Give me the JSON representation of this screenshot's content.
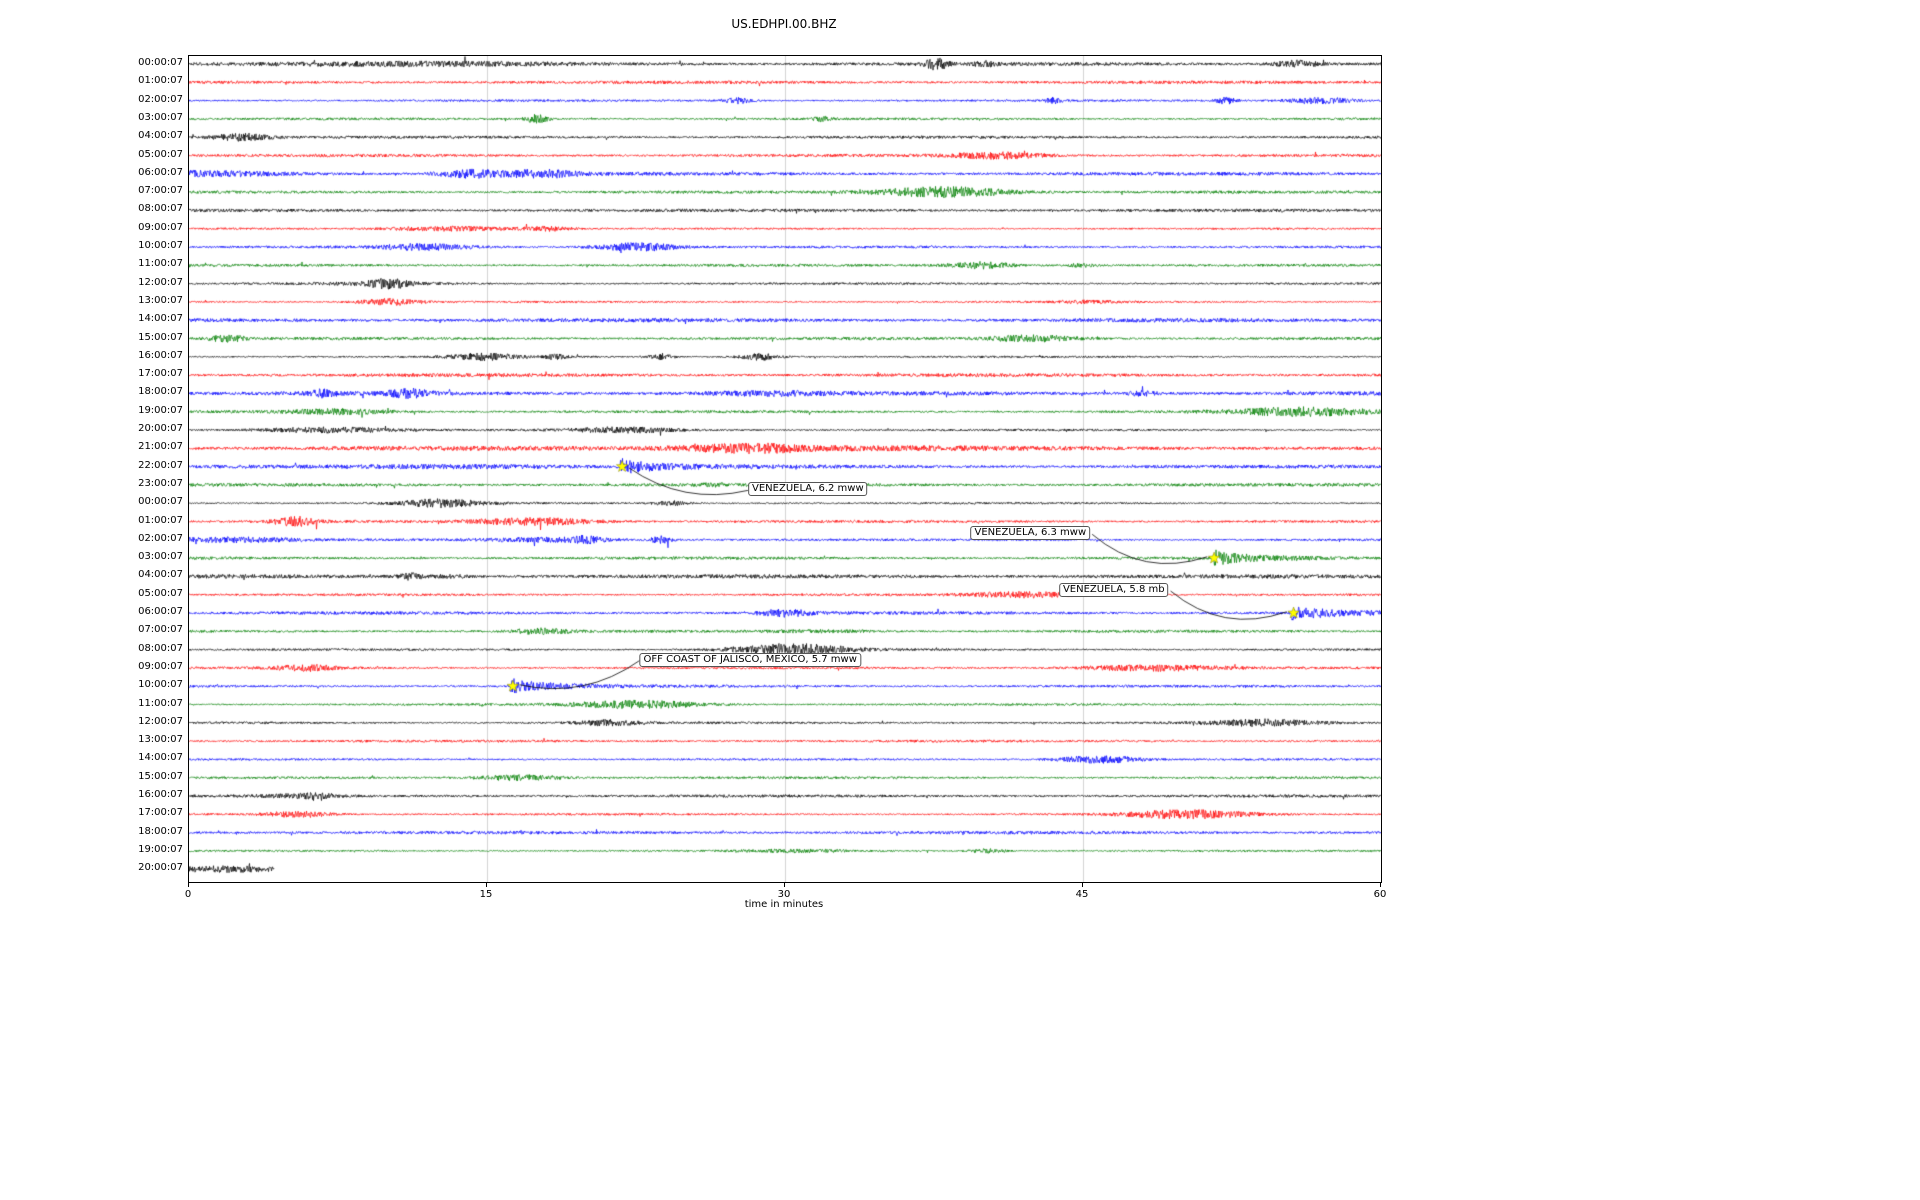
{
  "title": "US.EDHPI.00.BHZ",
  "chart_data": {
    "type": "line",
    "subtype": "helicorder-dayplot",
    "station": "US.EDHPI.00.BHZ",
    "xlabel": "time in minutes",
    "x_range_minutes": [
      0,
      60
    ],
    "x_ticks": [
      0,
      15,
      30,
      45,
      60
    ],
    "grid": "vertical-light-gray",
    "trace_color_cycle": [
      "#000000",
      "#ff0000",
      "#0000ff",
      "#008000"
    ],
    "event_marker_color": "#ffff00",
    "last_row_duration_minutes": 4.3,
    "rows": [
      {
        "label": "00:00:07",
        "color": "#000000"
      },
      {
        "label": "01:00:07",
        "color": "#ff0000"
      },
      {
        "label": "02:00:07",
        "color": "#0000ff"
      },
      {
        "label": "03:00:07",
        "color": "#008000"
      },
      {
        "label": "04:00:07",
        "color": "#000000"
      },
      {
        "label": "05:00:07",
        "color": "#ff0000"
      },
      {
        "label": "06:00:07",
        "color": "#0000ff"
      },
      {
        "label": "07:00:07",
        "color": "#008000"
      },
      {
        "label": "08:00:07",
        "color": "#000000"
      },
      {
        "label": "09:00:07",
        "color": "#ff0000"
      },
      {
        "label": "10:00:07",
        "color": "#0000ff"
      },
      {
        "label": "11:00:07",
        "color": "#008000"
      },
      {
        "label": "12:00:07",
        "color": "#000000"
      },
      {
        "label": "13:00:07",
        "color": "#ff0000"
      },
      {
        "label": "14:00:07",
        "color": "#0000ff"
      },
      {
        "label": "15:00:07",
        "color": "#008000"
      },
      {
        "label": "16:00:07",
        "color": "#000000"
      },
      {
        "label": "17:00:07",
        "color": "#ff0000"
      },
      {
        "label": "18:00:07",
        "color": "#0000ff"
      },
      {
        "label": "19:00:07",
        "color": "#008000"
      },
      {
        "label": "20:00:07",
        "color": "#000000"
      },
      {
        "label": "21:00:07",
        "color": "#ff0000"
      },
      {
        "label": "22:00:07",
        "color": "#0000ff"
      },
      {
        "label": "23:00:07",
        "color": "#008000"
      },
      {
        "label": "00:00:07",
        "color": "#000000"
      },
      {
        "label": "01:00:07",
        "color": "#ff0000"
      },
      {
        "label": "02:00:07",
        "color": "#0000ff"
      },
      {
        "label": "03:00:07",
        "color": "#008000"
      },
      {
        "label": "04:00:07",
        "color": "#000000"
      },
      {
        "label": "05:00:07",
        "color": "#ff0000"
      },
      {
        "label": "06:00:07",
        "color": "#0000ff"
      },
      {
        "label": "07:00:07",
        "color": "#008000"
      },
      {
        "label": "08:00:07",
        "color": "#000000"
      },
      {
        "label": "09:00:07",
        "color": "#ff0000"
      },
      {
        "label": "10:00:07",
        "color": "#0000ff"
      },
      {
        "label": "11:00:07",
        "color": "#008000"
      },
      {
        "label": "12:00:07",
        "color": "#000000"
      },
      {
        "label": "13:00:07",
        "color": "#ff0000"
      },
      {
        "label": "14:00:07",
        "color": "#0000ff"
      },
      {
        "label": "15:00:07",
        "color": "#008000"
      },
      {
        "label": "16:00:07",
        "color": "#000000"
      },
      {
        "label": "17:00:07",
        "color": "#ff0000"
      },
      {
        "label": "18:00:07",
        "color": "#0000ff"
      },
      {
        "label": "19:00:07",
        "color": "#008000"
      },
      {
        "label": "20:00:07",
        "color": "#000000"
      }
    ],
    "events": [
      {
        "label": "VENEZUELA, 6.2 mww",
        "row": 22,
        "x_minutes": 21.8,
        "label_x_minutes": 31.2,
        "label_row": 23.3,
        "attach": "left"
      },
      {
        "label": "VENEZUELA, 6.3 mww",
        "row": 27,
        "x_minutes": 51.6,
        "label_x_minutes": 42.4,
        "label_row": 25.7,
        "attach": "right"
      },
      {
        "label": "VENEZUELA, 5.8 mb",
        "row": 30,
        "x_minutes": 55.6,
        "label_x_minutes": 46.6,
        "label_row": 28.8,
        "attach": "right"
      },
      {
        "label": "OFF COAST OF JALISCO, MEXICO, 5.7 mww",
        "row": 34,
        "x_minutes": 16.3,
        "label_x_minutes": 28.3,
        "label_row": 32.6,
        "attach": "left"
      }
    ],
    "activity_bursts": [
      {
        "row": 0,
        "x": 10.0,
        "amp": 1.5,
        "w": 6.0
      },
      {
        "row": 0,
        "x": 37.6,
        "amp": 5.0,
        "w": 0.4
      },
      {
        "row": 0,
        "x": 40.0,
        "amp": 2.5,
        "w": 0.3
      },
      {
        "row": 0,
        "x": 55.8,
        "amp": 3.5,
        "w": 0.8
      },
      {
        "row": 2,
        "x": 27.6,
        "amp": 3.0,
        "w": 0.5
      },
      {
        "row": 2,
        "x": 43.5,
        "amp": 2.5,
        "w": 0.3
      },
      {
        "row": 2,
        "x": 52.2,
        "amp": 3.0,
        "w": 0.4
      },
      {
        "row": 2,
        "x": 57.0,
        "amp": 3.0,
        "w": 1.2
      },
      {
        "row": 3,
        "x": 17.5,
        "amp": 4.0,
        "w": 0.4
      },
      {
        "row": 3,
        "x": 31.8,
        "amp": 2.0,
        "w": 0.3
      },
      {
        "row": 4,
        "x": 2.6,
        "amp": 3.5,
        "w": 1.0
      },
      {
        "row": 15,
        "x": 42.5,
        "amp": 3.0,
        "w": 1.5
      },
      {
        "row": 16,
        "x": 18.4,
        "amp": 2.5,
        "w": 0.4
      },
      {
        "row": 16,
        "x": 23.8,
        "amp": 3.0,
        "w": 0.4
      },
      {
        "row": 18,
        "x": 6.7,
        "amp": 3.0,
        "w": 0.5
      },
      {
        "row": 18,
        "x": 48.0,
        "amp": 2.0,
        "w": 0.5
      },
      {
        "row": 20,
        "x": 22.0,
        "amp": 2.5,
        "w": 2.0
      },
      {
        "row": 21,
        "x": 30.0,
        "amp": 1.2,
        "w": 14.0
      },
      {
        "row": 22,
        "x": 14.0,
        "amp": 1.5,
        "w": 4.0
      },
      {
        "row": 25,
        "x": 17.5,
        "amp": 3.5,
        "w": 2.2
      },
      {
        "row": 26,
        "x": 20.0,
        "amp": 3.0,
        "w": 0.5
      },
      {
        "row": 26,
        "x": 23.8,
        "amp": 3.5,
        "w": 0.4
      },
      {
        "row": 28,
        "x": 11.2,
        "amp": 3.0,
        "w": 0.4
      },
      {
        "row": 30,
        "x": 30.0,
        "amp": 3.0,
        "w": 1.0
      },
      {
        "row": 38,
        "x": 45.8,
        "amp": 3.5,
        "w": 1.5
      },
      {
        "row": 40,
        "x": 5.5,
        "amp": 1.5,
        "w": 1.2
      },
      {
        "row": 41,
        "x": 5.5,
        "amp": 3.0,
        "w": 1.2
      },
      {
        "row": 44,
        "x": 2.0,
        "amp": 2.0,
        "w": 1.5
      }
    ]
  }
}
